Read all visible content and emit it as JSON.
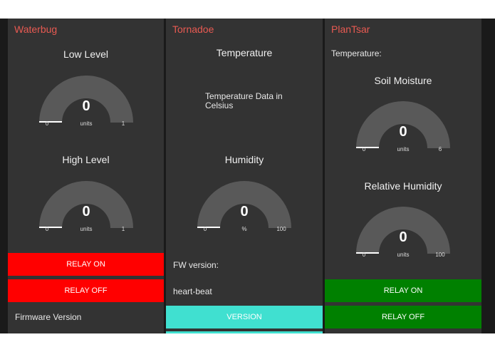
{
  "colors": {
    "column_bg": "#333333",
    "title": "#e85a52",
    "gauge_track": "#595959",
    "gauge_fill": "#ffffff",
    "relay_red": "#ff0000",
    "relay_green": "#008000",
    "version_teal": "#40e0d0"
  },
  "waterbug": {
    "title": "Waterbug",
    "low_level": {
      "label": "Low Level",
      "value": "0",
      "units": "units",
      "min": "0",
      "max": "1"
    },
    "high_level": {
      "label": "High Level",
      "value": "0",
      "units": "units",
      "min": "0",
      "max": "1"
    },
    "relay_on": "RELAY ON",
    "relay_off": "RELAY OFF",
    "firmware_label": "Firmware Version"
  },
  "tornadoe": {
    "title": "Tornadoe",
    "temperature_label": "Temperature",
    "temperature_text": "Temperature Data in Celsius",
    "humidity": {
      "label": "Humidity",
      "value": "0",
      "units": "%",
      "min": "0",
      "max": "100"
    },
    "fw_version_label": "FW version:",
    "heartbeat_label": "heart-beat",
    "version_button": "VERSION"
  },
  "plantsar": {
    "title": "PlanTsar",
    "temperature_label": "Temperature:",
    "soil_moisture": {
      "label": "Soil Moisture",
      "value": "0",
      "units": "units",
      "min": "0",
      "max": "6"
    },
    "relative_humidity": {
      "label": "Relative Humidity",
      "value": "0",
      "units": "units",
      "min": "0",
      "max": "100"
    },
    "relay_on": "RELAY ON",
    "relay_off": "RELAY OFF"
  }
}
